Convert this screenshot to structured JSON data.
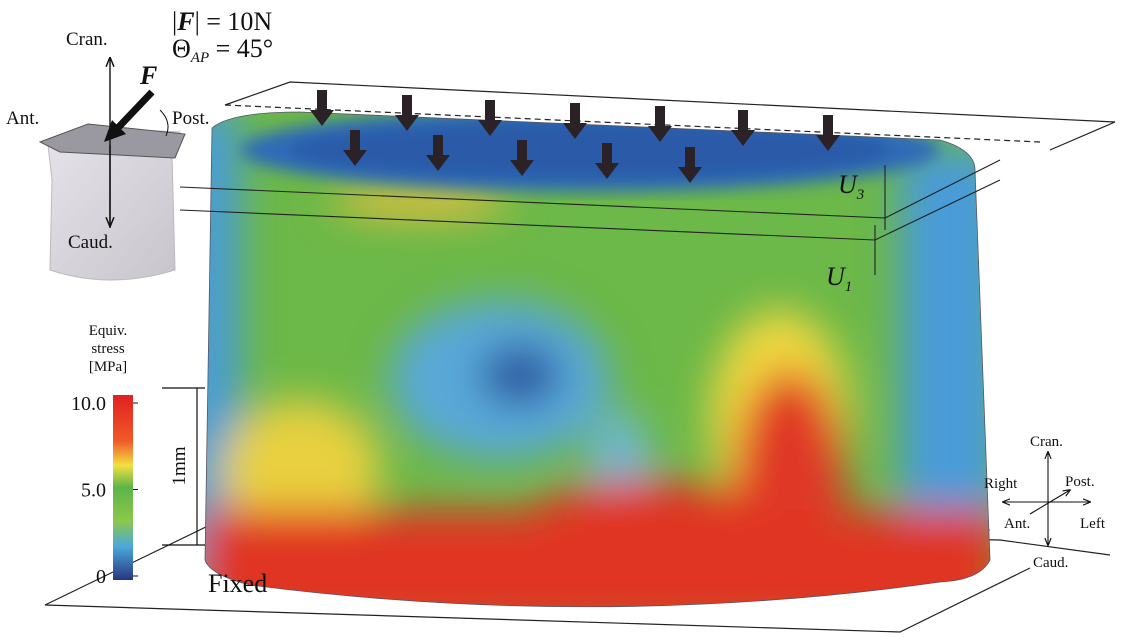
{
  "header": {
    "force": [
      "|",
      "F",
      "| = 10N"
    ],
    "angle": [
      "Θ",
      "AP",
      " = 45°"
    ]
  },
  "inset": {
    "cran": "Cran.",
    "ant": "Ant.",
    "post": "Post.",
    "caud": "Caud.",
    "force_symbol": "F"
  },
  "colorbar": {
    "title": [
      "Equiv.",
      "stress",
      "[MPa]"
    ],
    "lim": [
      0,
      10
    ],
    "ticks": [
      {
        "value": 10,
        "label": "10.0"
      },
      {
        "value": 5,
        "label": "5.0"
      },
      0
    ]
  },
  "scale_bar": "1mm",
  "fixed": "Fixed",
  "displacements": {
    "u3": [
      "U",
      "3"
    ],
    "u1": [
      "U",
      "1"
    ]
  },
  "axes": {
    "cran": "Cran.",
    "right": "Right",
    "post": "Post.",
    "ant": "Ant.",
    "left": "Left",
    "caud": "Caud."
  }
}
